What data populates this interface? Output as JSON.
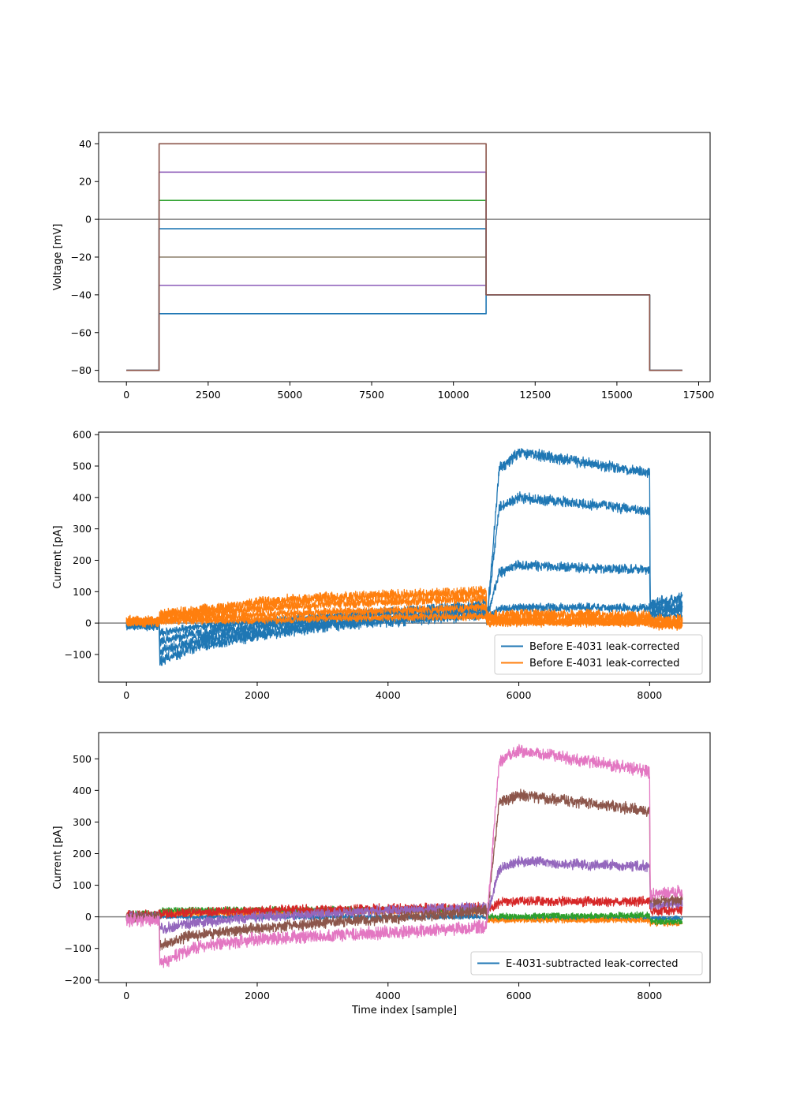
{
  "chart_data": [
    {
      "type": "line",
      "title": "",
      "xlabel": "",
      "ylabel": "Voltage [mV]",
      "xlim": [
        -850,
        17850
      ],
      "ylim": [
        -86,
        46
      ],
      "xticks": [
        0,
        2500,
        5000,
        7500,
        10000,
        12500,
        15000,
        17500
      ],
      "yticks": [
        -80,
        -60,
        -40,
        -20,
        0,
        20,
        40
      ],
      "hline": 0,
      "legend": null,
      "series": [
        {
          "color": "#1f77b4",
          "x": [
            0,
            1000,
            1000,
            11000,
            11000,
            16000,
            16000,
            17000
          ],
          "y": [
            -80,
            -80,
            -50,
            -50,
            -40,
            -40,
            -80,
            -80
          ]
        },
        {
          "color": "#9467bd",
          "x": [
            0,
            1000,
            1000,
            11000,
            11000,
            16000,
            16000,
            17000
          ],
          "y": [
            -80,
            -80,
            -35,
            -35,
            -40,
            -40,
            -80,
            -80
          ]
        },
        {
          "color": "#8c7e6a",
          "x": [
            0,
            1000,
            1000,
            11000,
            11000,
            16000,
            16000,
            17000
          ],
          "y": [
            -80,
            -80,
            -20,
            -20,
            -40,
            -40,
            -80,
            -80
          ]
        },
        {
          "color": "#1f77b4",
          "x": [
            0,
            1000,
            1000,
            11000,
            11000,
            16000,
            16000,
            17000
          ],
          "y": [
            -80,
            -80,
            -5,
            -5,
            -40,
            -40,
            -80,
            -80
          ]
        },
        {
          "color": "#2ca02c",
          "x": [
            0,
            1000,
            1000,
            11000,
            11000,
            16000,
            16000,
            17000
          ],
          "y": [
            -80,
            -80,
            10,
            10,
            -40,
            -40,
            -80,
            -80
          ]
        },
        {
          "color": "#9467bd",
          "x": [
            0,
            1000,
            1000,
            11000,
            11000,
            16000,
            16000,
            17000
          ],
          "y": [
            -80,
            -80,
            25,
            25,
            -40,
            -40,
            -80,
            -80
          ]
        },
        {
          "color": "#8c564b",
          "x": [
            0,
            1000,
            1000,
            11000,
            11000,
            16000,
            16000,
            17000
          ],
          "y": [
            -80,
            -80,
            40,
            40,
            -40,
            -40,
            -80,
            -80
          ]
        }
      ]
    },
    {
      "type": "line",
      "title": "",
      "xlabel": "",
      "ylabel": "Current [pA]",
      "xlim": [
        -425,
        8925
      ],
      "ylim": [
        -188,
        608
      ],
      "xticks": [
        0,
        2000,
        4000,
        6000,
        8000
      ],
      "yticks": [
        -100,
        0,
        100,
        200,
        300,
        400,
        500,
        600
      ],
      "hline": 0,
      "legend": {
        "loc": "lower right",
        "entries": [
          {
            "label": "Before E-4031 leak-corrected",
            "color": "#1f77b4"
          },
          {
            "label": "Before E-4031 leak-corrected",
            "color": "#ff7f0e"
          }
        ]
      },
      "series": [
        {
          "color": "#1f77b4",
          "noise": 14,
          "x": [
            0,
            500,
            510,
            1000,
            2000,
            3000,
            4000,
            5000,
            5500,
            5510,
            5700,
            6000,
            7000,
            8000,
            8010,
            8500
          ],
          "y": [
            -5,
            -5,
            -120,
            -80,
            -40,
            -10,
            5,
            20,
            30,
            0,
            490,
            545,
            510,
            480,
            60,
            80
          ]
        },
        {
          "color": "#1f77b4",
          "noise": 13,
          "x": [
            0,
            500,
            510,
            1000,
            2000,
            3000,
            4000,
            5000,
            5500,
            5510,
            5700,
            6000,
            7000,
            8000,
            8010,
            8500
          ],
          "y": [
            -5,
            -5,
            -90,
            -60,
            -25,
            0,
            15,
            35,
            45,
            10,
            370,
            400,
            380,
            355,
            50,
            55
          ]
        },
        {
          "color": "#1f77b4",
          "noise": 12,
          "x": [
            0,
            500,
            510,
            1000,
            2000,
            3000,
            4000,
            5000,
            5500,
            5510,
            5700,
            6000,
            7000,
            8000,
            8010,
            8500
          ],
          "y": [
            0,
            0,
            -60,
            -35,
            -10,
            15,
            35,
            50,
            60,
            15,
            160,
            185,
            175,
            170,
            35,
            40
          ]
        },
        {
          "color": "#1f77b4",
          "noise": 10,
          "x": [
            0,
            500,
            510,
            1000,
            2000,
            3000,
            4000,
            5000,
            5500,
            5510,
            5700,
            6000,
            7000,
            8000,
            8010,
            8500
          ],
          "y": [
            0,
            0,
            -30,
            -15,
            5,
            20,
            35,
            45,
            50,
            15,
            45,
            50,
            50,
            48,
            25,
            25
          ]
        },
        {
          "color": "#ff7f0e",
          "noise": 14,
          "x": [
            0,
            500,
            510,
            1000,
            2000,
            3000,
            4000,
            5000,
            5500,
            5510,
            6000,
            7000,
            8000,
            8010,
            8500
          ],
          "y": [
            5,
            5,
            30,
            35,
            65,
            80,
            88,
            95,
            100,
            20,
            28,
            25,
            22,
            10,
            10
          ]
        },
        {
          "color": "#ff7f0e",
          "noise": 12,
          "x": [
            0,
            500,
            510,
            1000,
            2000,
            3000,
            4000,
            5000,
            5500,
            5510,
            6000,
            7000,
            8000,
            8010,
            8500
          ],
          "y": [
            5,
            5,
            20,
            25,
            45,
            60,
            68,
            75,
            80,
            10,
            15,
            12,
            10,
            0,
            0
          ]
        },
        {
          "color": "#ff7f0e",
          "noise": 10,
          "x": [
            0,
            500,
            510,
            1000,
            2000,
            3000,
            4000,
            5000,
            5500,
            5510,
            6000,
            7000,
            8000,
            8010,
            8500
          ],
          "y": [
            5,
            5,
            10,
            15,
            25,
            35,
            40,
            45,
            50,
            5,
            5,
            5,
            3,
            -5,
            -5
          ]
        },
        {
          "color": "#ff7f0e",
          "noise": 9,
          "x": [
            0,
            500,
            510,
            1000,
            2000,
            3000,
            4000,
            5000,
            5500,
            5510,
            6000,
            7000,
            8000,
            8010,
            8500
          ],
          "y": [
            5,
            5,
            5,
            8,
            10,
            15,
            18,
            20,
            22,
            0,
            0,
            0,
            0,
            -10,
            -10
          ]
        }
      ]
    },
    {
      "type": "line",
      "title": "",
      "xlabel": "Time index [sample]",
      "ylabel": "Current [pA]",
      "xlim": [
        -425,
        8925
      ],
      "ylim": [
        -208,
        583
      ],
      "xticks": [
        0,
        2000,
        4000,
        6000,
        8000
      ],
      "yticks": [
        -200,
        -100,
        0,
        100,
        200,
        300,
        400,
        500
      ],
      "hline": 0,
      "legend": {
        "loc": "lower right",
        "entries": [
          {
            "label": "E-4031-subtracted leak-corrected",
            "color": "#1f77b4"
          }
        ]
      },
      "series": [
        {
          "color": "#1f77b4",
          "noise": 6,
          "x": [
            0,
            500,
            510,
            5500,
            5510,
            8000,
            8010,
            8500
          ],
          "y": [
            0,
            0,
            0,
            0,
            -5,
            -5,
            -5,
            -5
          ]
        },
        {
          "color": "#ff7f0e",
          "noise": 7,
          "x": [
            0,
            500,
            510,
            5500,
            5510,
            8000,
            8010,
            8500
          ],
          "y": [
            5,
            5,
            10,
            20,
            -10,
            -10,
            -20,
            -20
          ]
        },
        {
          "color": "#2ca02c",
          "noise": 8,
          "x": [
            0,
            500,
            510,
            5500,
            5510,
            8000,
            8010,
            8500
          ],
          "y": [
            10,
            10,
            20,
            25,
            0,
            5,
            -15,
            -15
          ]
        },
        {
          "color": "#d62728",
          "noise": 12,
          "x": [
            0,
            500,
            510,
            2000,
            4000,
            5500,
            5510,
            5700,
            6000,
            8000,
            8010,
            8500
          ],
          "y": [
            5,
            5,
            10,
            20,
            25,
            30,
            20,
            45,
            50,
            48,
            20,
            20
          ]
        },
        {
          "color": "#9467bd",
          "noise": 13,
          "x": [
            0,
            500,
            510,
            1000,
            2000,
            4000,
            5500,
            5510,
            5700,
            6000,
            7000,
            8000,
            8010,
            8500
          ],
          "y": [
            0,
            0,
            -40,
            -20,
            0,
            20,
            30,
            0,
            150,
            175,
            165,
            160,
            40,
            40
          ]
        },
        {
          "color": "#8c564b",
          "noise": 14,
          "x": [
            0,
            500,
            510,
            1000,
            2000,
            3000,
            4000,
            5000,
            5500,
            5510,
            5700,
            6000,
            7000,
            8000,
            8010,
            8500
          ],
          "y": [
            0,
            0,
            -90,
            -60,
            -35,
            -20,
            -5,
            10,
            20,
            -10,
            360,
            385,
            360,
            335,
            50,
            55
          ]
        },
        {
          "color": "#e377c2",
          "noise": 16,
          "x": [
            0,
            500,
            510,
            1000,
            2000,
            3000,
            4000,
            5000,
            5500,
            5510,
            5700,
            6000,
            7000,
            8000,
            8010,
            8500
          ],
          "y": [
            -10,
            -10,
            -150,
            -100,
            -70,
            -60,
            -50,
            -40,
            -30,
            -20,
            490,
            525,
            495,
            460,
            70,
            80
          ]
        }
      ]
    }
  ]
}
